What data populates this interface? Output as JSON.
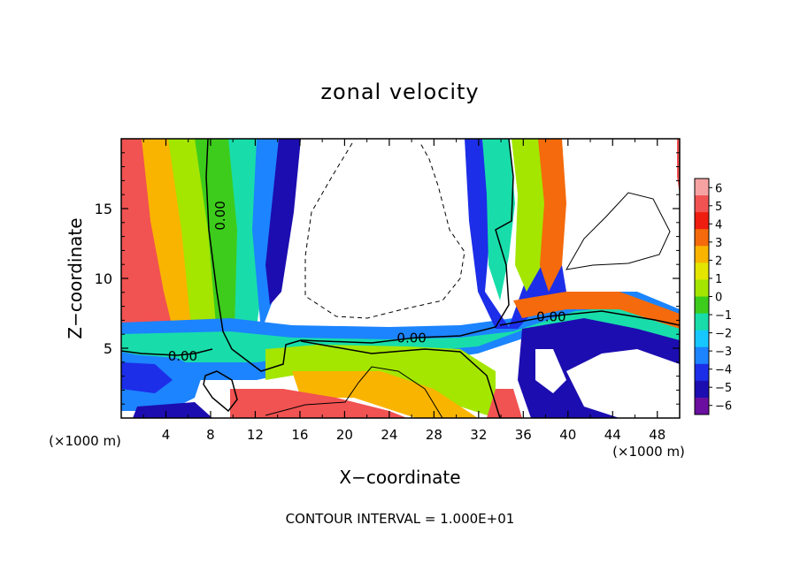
{
  "chart_data": {
    "type": "heatmap",
    "title": "zonal velocity",
    "xlabel": "X−coordinate",
    "ylabel": "Z−coordinate",
    "x_unit": "(×1000 m)",
    "xlim": [
      0,
      50
    ],
    "ylim": [
      0,
      20
    ],
    "x_ticks": [
      4,
      8,
      12,
      16,
      20,
      24,
      28,
      32,
      36,
      40,
      44,
      48
    ],
    "y_ticks": [
      5,
      10,
      15
    ],
    "footer": "CONTOUR INTERVAL = 1.000E+01",
    "contour_label": "0.00",
    "contour_label_positions": [
      [
        8.8,
        14.5
      ],
      [
        5.5,
        4.5
      ],
      [
        26,
        5.8
      ],
      [
        38.5,
        7.3
      ]
    ],
    "colorbar": {
      "levels": [
        6,
        5,
        4,
        3,
        2,
        1,
        0,
        -1,
        -2,
        -3,
        -4,
        -5,
        -6
      ],
      "colors": [
        "#f6a2a2",
        "#f15252",
        "#ef1c10",
        "#f46a0c",
        "#f9b400",
        "#e4e600",
        "#a4e600",
        "#3dcc1c",
        "#18ddaa",
        "#16c8ff",
        "#1c84ff",
        "#1c2ee8",
        "#1c0db0",
        "#6a0fa0"
      ]
    }
  }
}
